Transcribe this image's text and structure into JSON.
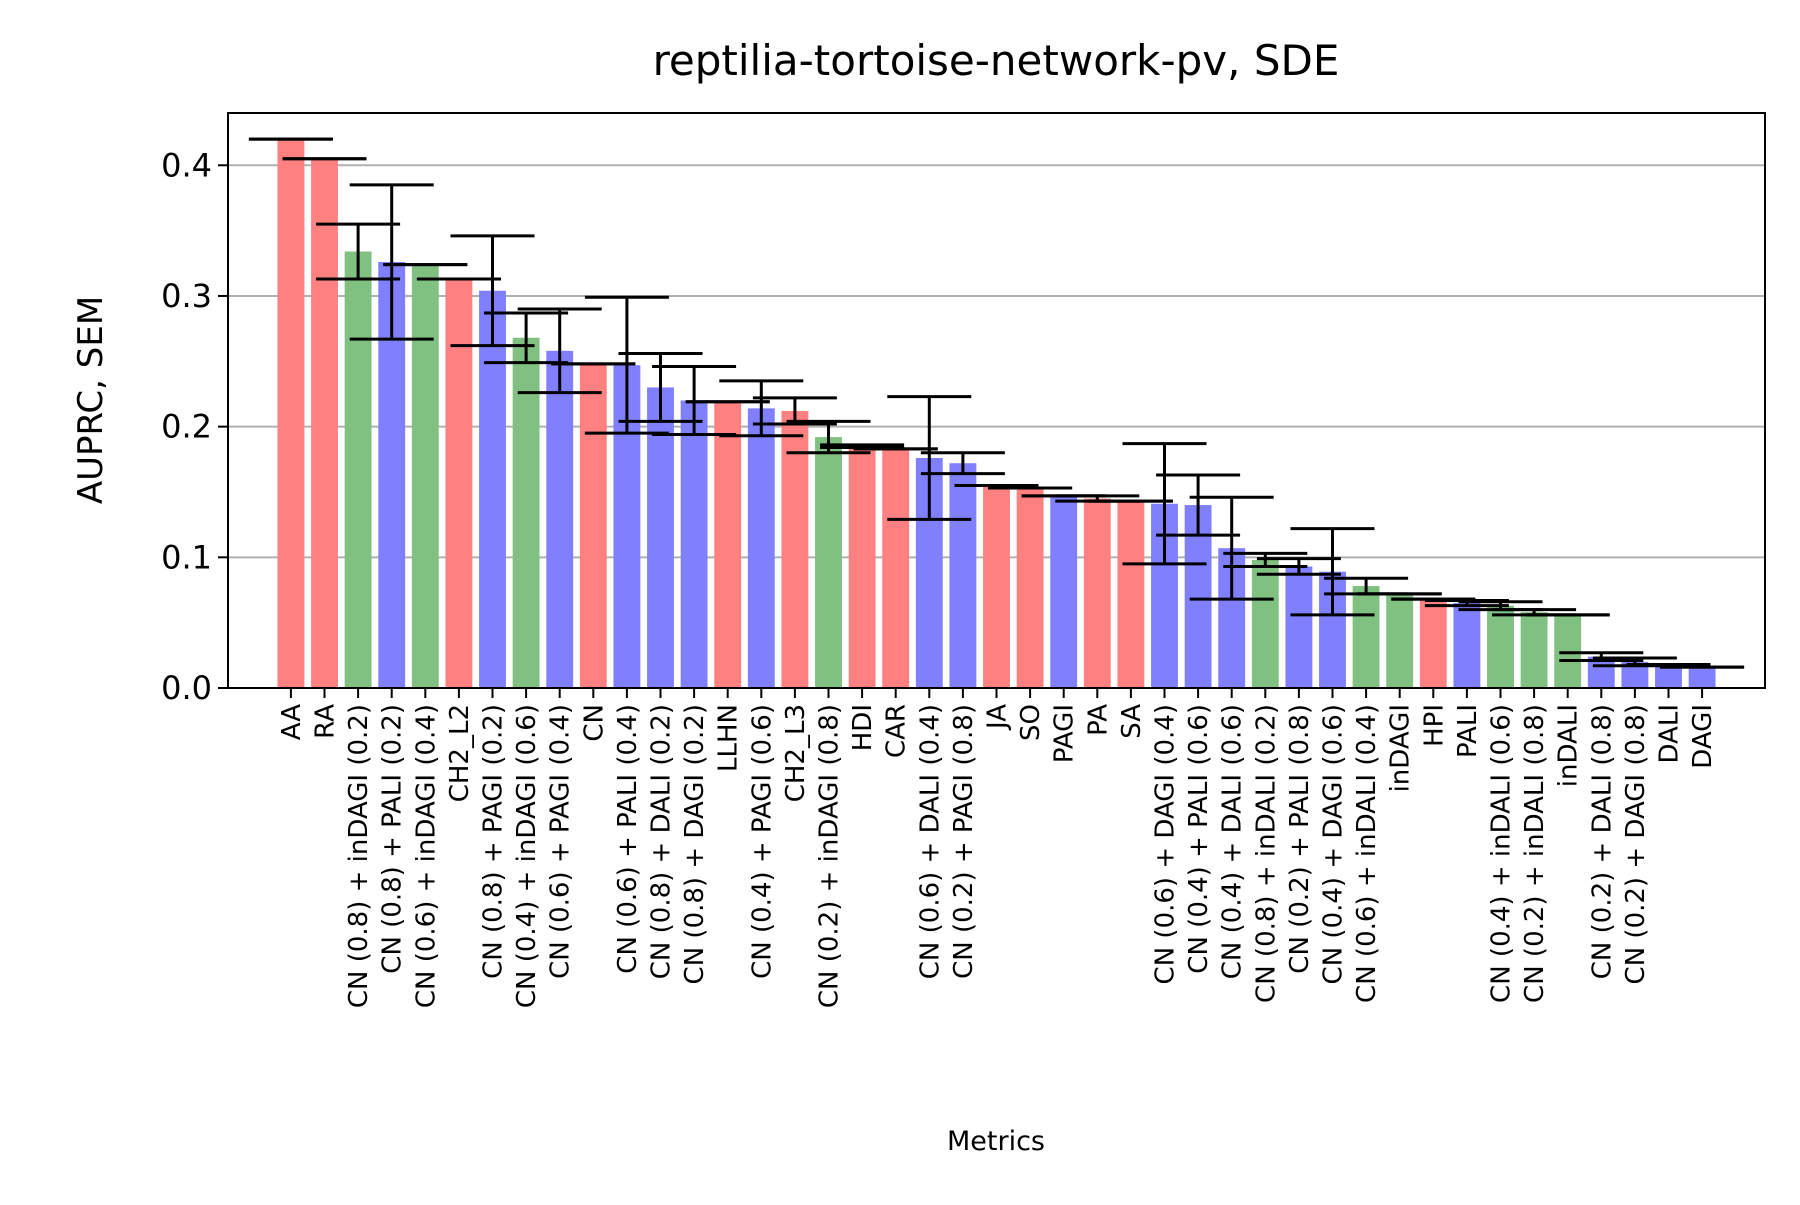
{
  "chart_data": {
    "type": "bar",
    "title": "reptilia-tortoise-network-pv, SDE",
    "xlabel": "Metrics",
    "ylabel": "AUPRC, SEM",
    "ylim": [
      0,
      0.44
    ],
    "yticks": [
      "0.0",
      "0.1",
      "0.2",
      "0.3",
      "0.4"
    ],
    "grid": "y",
    "colors": {
      "red": "#ff8080",
      "blue": "#8080ff",
      "green": "#80c080",
      "grid": "#b0b0b0",
      "error": "#000000"
    },
    "categories": [
      "AA",
      "RA",
      "CN (0.8) + inDAGI (0.2)",
      "CN (0.8) + PALI (0.2)",
      "CN (0.6) + inDAGI (0.4)",
      "CH2_L2",
      "CN (0.8) + PAGI (0.2)",
      "CN (0.4) + inDAGI (0.6)",
      "CN (0.6) + PAGI (0.4)",
      "CN",
      "CN (0.6) + PALI (0.4)",
      "CN (0.8) + DALI (0.2)",
      "CN (0.8) + DAGI (0.2)",
      "LLHN",
      "CN (0.4) + PAGI (0.6)",
      "CH2_L3",
      "CN (0.2) + inDAGI (0.8)",
      "HDI",
      "CAR",
      "CN (0.6) + DALI (0.4)",
      "CN (0.2) + PAGI (0.8)",
      "JA",
      "SO",
      "PAGI",
      "PA",
      "SA",
      "CN (0.6) + DAGI (0.4)",
      "CN (0.4) + PALI (0.6)",
      "CN (0.4) + DALI (0.6)",
      "CN (0.8) + inDALI (0.2)",
      "CN (0.2) + PALI (0.8)",
      "CN (0.4) + DAGI (0.6)",
      "CN (0.6) + inDALI (0.4)",
      "inDAGI",
      "HPI",
      "PALI",
      "CN (0.4) + inDALI (0.6)",
      "CN (0.2) + inDALI (0.8)",
      "inDALI",
      "CN (0.2) + DALI (0.8)",
      "CN (0.2) + DAGI (0.8)",
      "DALI",
      "DAGI"
    ],
    "values": [
      0.42,
      0.405,
      0.334,
      0.326,
      0.324,
      0.313,
      0.304,
      0.268,
      0.258,
      0.248,
      0.247,
      0.23,
      0.22,
      0.219,
      0.214,
      0.212,
      0.192,
      0.185,
      0.183,
      0.176,
      0.172,
      0.155,
      0.153,
      0.147,
      0.145,
      0.143,
      0.141,
      0.14,
      0.107,
      0.098,
      0.093,
      0.089,
      0.078,
      0.072,
      0.068,
      0.065,
      0.063,
      0.058,
      0.056,
      0.024,
      0.02,
      0.018,
      0.016
    ],
    "errors": [
      0,
      0,
      0.021,
      0.059,
      0,
      0,
      0.042,
      0.019,
      0.032,
      0,
      0.052,
      0.026,
      0.026,
      0,
      0.021,
      0.01,
      0.012,
      0.001,
      0,
      0.047,
      0.008,
      0,
      0,
      0,
      0.002,
      0,
      0.046,
      0.023,
      0.039,
      0.005,
      0.006,
      0.033,
      0.006,
      0,
      0,
      0.002,
      0.003,
      0.002,
      0,
      0.003,
      0.003,
      0,
      0
    ],
    "bar_colors": [
      "red",
      "red",
      "green",
      "blue",
      "green",
      "red",
      "blue",
      "green",
      "blue",
      "red",
      "blue",
      "blue",
      "blue",
      "red",
      "blue",
      "red",
      "green",
      "red",
      "red",
      "blue",
      "blue",
      "red",
      "red",
      "blue",
      "red",
      "red",
      "blue",
      "blue",
      "blue",
      "green",
      "blue",
      "blue",
      "green",
      "green",
      "red",
      "blue",
      "green",
      "green",
      "green",
      "blue",
      "blue",
      "blue",
      "blue"
    ]
  }
}
